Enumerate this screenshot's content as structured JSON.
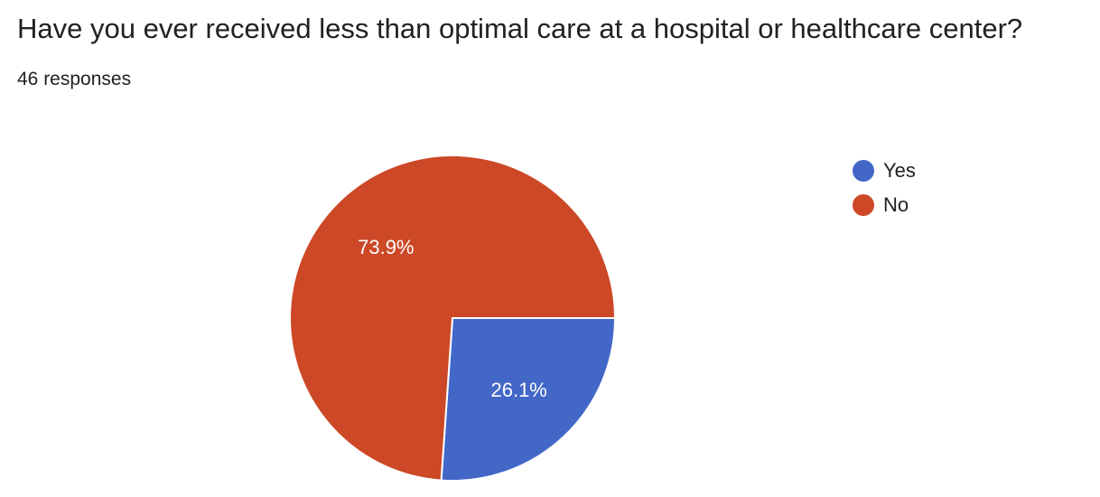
{
  "header": {
    "title": "Have you ever received less than optimal care at a hospital or healthcare center?",
    "responses": "46 responses"
  },
  "chart_data": {
    "type": "pie",
    "title": "Have you ever received less than optimal care at a hospital or healthcare center?",
    "categories": [
      "Yes",
      "No"
    ],
    "values": [
      26.1,
      73.9
    ],
    "labels": [
      "26.1%",
      "73.9%"
    ],
    "colors": [
      "#4267c7",
      "#cc4827"
    ],
    "legend_position": "right"
  }
}
